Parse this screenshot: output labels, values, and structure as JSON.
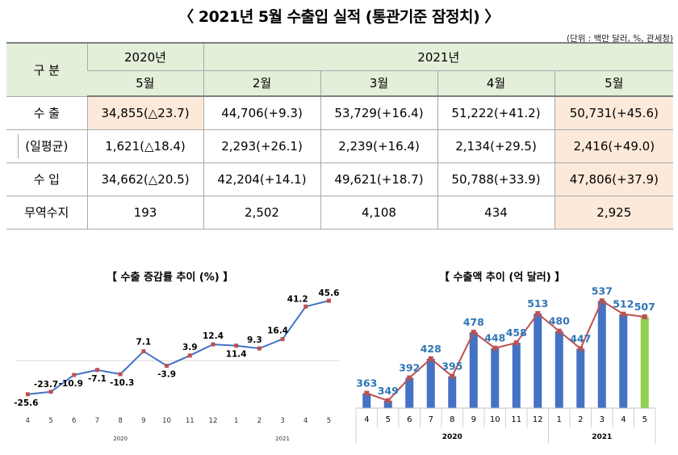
{
  "title": "〈 2021년 5월 수출입 실적 (통관기준 잠정치) 〉",
  "unit": "(단위 : 백만 달러, %, 관세청)",
  "table": {
    "header_label": "구  분",
    "year_2020": "2020년",
    "year_2021": "2021년",
    "months": [
      "5월",
      "2월",
      "3월",
      "4월",
      "5월"
    ],
    "rows": [
      {
        "label": "수  출",
        "cells": [
          "34,855(△23.7)",
          "44,706(+9.3)",
          "53,729(+16.4)",
          "51,222(+41.2)",
          "50,731(+45.6)"
        ]
      },
      {
        "label": "(일평균)",
        "cells": [
          "1,621(△18.4)",
          "2,293(+26.1)",
          "2,239(+16.4)",
          "2,134(+29.5)",
          "2,416(+49.0)"
        ]
      },
      {
        "label": "수  입",
        "cells": [
          "34,662(△20.5)",
          "42,204(+14.1)",
          "49,621(+18.7)",
          "50,788(+33.9)",
          "47,806(+37.9)"
        ]
      },
      {
        "label": "무역수지",
        "cells": [
          "193",
          "2,502",
          "4,108",
          "434",
          "2,925"
        ]
      }
    ]
  },
  "colors": {
    "header_green": "#e3efd9",
    "highlight_peach": "#fde9d9",
    "line_blue": "#4472c4",
    "bar_blue": "#4472c4",
    "bar_green": "#92d050",
    "line_red": "#c0504d",
    "label_blue": "#2e75b6"
  },
  "chart_data": [
    {
      "type": "line",
      "title": "【 수출 증감률 추이 (%) 】",
      "categories": [
        "4",
        "5",
        "6",
        "7",
        "8",
        "9",
        "10",
        "11",
        "12",
        "1",
        "2",
        "3",
        "4",
        "5"
      ],
      "year_groups": [
        {
          "label": "2020",
          "count": 9
        },
        {
          "label": "2021",
          "count": 5
        }
      ],
      "values": [
        -25.6,
        -23.7,
        -10.9,
        -7.1,
        -10.3,
        7.1,
        -3.9,
        3.9,
        12.4,
        11.4,
        9.3,
        16.4,
        41.2,
        45.6
      ],
      "labels": [
        "-25.6",
        "-23.7",
        "-10.9",
        "-7.1",
        "-10.3",
        "7.1",
        "-3.9",
        "3.9",
        "12.4",
        "11.4",
        "9.3",
        "16.4",
        "41.2",
        "45.6"
      ],
      "ylim": [
        -30,
        50
      ],
      "grid": false
    },
    {
      "type": "bar",
      "title": "【 수출액 추이 (억 달러) 】",
      "categories": [
        "4",
        "5",
        "6",
        "7",
        "8",
        "9",
        "10",
        "11",
        "12",
        "1",
        "2",
        "3",
        "4",
        "5"
      ],
      "year_groups": [
        {
          "label": "2020",
          "count": 9
        },
        {
          "label": "2021",
          "count": 5
        }
      ],
      "values": [
        363,
        349,
        392,
        428,
        395,
        478,
        448,
        458,
        513,
        480,
        447,
        537,
        512,
        507
      ],
      "labels": [
        "363",
        "349",
        "392",
        "428",
        "395",
        "478",
        "448",
        "458",
        "513",
        "480",
        "447",
        "537",
        "512",
        "507"
      ],
      "ylim": [
        335,
        545
      ],
      "overlay_line": true,
      "highlight_last": true,
      "grid": false
    }
  ]
}
